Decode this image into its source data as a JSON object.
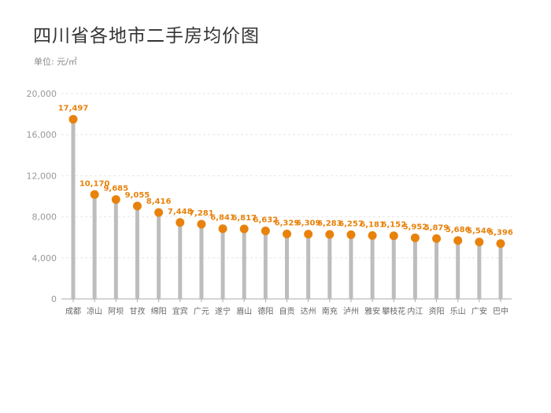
{
  "chart_data": {
    "type": "lollipop",
    "title": "四川省各地市二手房均价图",
    "unit_label": "单位: 元/㎡",
    "categories": [
      "成都",
      "凉山",
      "阿坝",
      "甘孜",
      "绵阳",
      "宜宾",
      "广元",
      "遂宁",
      "眉山",
      "德阳",
      "自贡",
      "达州",
      "南充",
      "泸州",
      "雅安",
      "攀枝花",
      "内江",
      "资阳",
      "乐山",
      "广安",
      "巴中"
    ],
    "values": [
      17497,
      10170,
      9685,
      9055,
      8416,
      7448,
      7281,
      6841,
      6817,
      6632,
      6329,
      6309,
      6283,
      6257,
      6181,
      6152,
      5952,
      5879,
      5686,
      5546,
      5396
    ],
    "value_labels": [
      "17,497",
      "10,170",
      "9,685",
      "9,055",
      "8,416",
      "7,448",
      "7,281",
      "6,841",
      "6,817",
      "6,632",
      "6,329",
      "6,309",
      "6,283",
      "6,257",
      "6,181",
      "6,152",
      "5,952",
      "5,879",
      "5,686",
      "5,546",
      "5,396"
    ],
    "yticks": [
      0,
      4000,
      8000,
      12000,
      16000,
      20000
    ],
    "ytick_labels": [
      "0",
      "4,000",
      "8,000",
      "12,000",
      "16,000",
      "20,000"
    ],
    "ylim": [
      0,
      20000
    ],
    "grid": true,
    "colors": {
      "stem": "#bdbdbd",
      "marker": "#e8820c",
      "label": "#e8820c",
      "grid": "#e6e6e6"
    }
  }
}
